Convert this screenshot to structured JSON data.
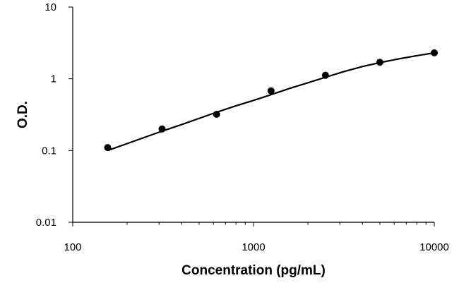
{
  "chart_data": {
    "type": "scatter",
    "title": "",
    "xlabel": "Concentration (pg/mL)",
    "ylabel": "O.D.",
    "x_scale": "log",
    "y_scale": "log",
    "xlim": [
      100,
      10000
    ],
    "ylim": [
      0.01,
      10
    ],
    "x_ticks": [
      "100",
      "1000",
      "10000"
    ],
    "y_ticks": [
      "10",
      "1",
      "0.1",
      "0.01"
    ],
    "grid": false,
    "legend": "none",
    "series": [
      {
        "x": [
          156,
          312,
          625,
          1250,
          2500,
          5000,
          10000
        ],
        "y": [
          0.11,
          0.2,
          0.32,
          0.68,
          1.12,
          1.7,
          2.3
        ]
      }
    ],
    "fit_curve": {
      "x": [
        156,
        200,
        300,
        400,
        600,
        800,
        1000,
        1250,
        1600,
        2000,
        2500,
        3200,
        4000,
        5000,
        6400,
        8000,
        10000
      ],
      "y": [
        0.1,
        0.125,
        0.18,
        0.23,
        0.33,
        0.42,
        0.5,
        0.6,
        0.74,
        0.88,
        1.05,
        1.27,
        1.48,
        1.68,
        1.9,
        2.1,
        2.3
      ]
    },
    "colors": {
      "axis": "#000000",
      "marker": "#000000",
      "curve": "#000000"
    }
  }
}
